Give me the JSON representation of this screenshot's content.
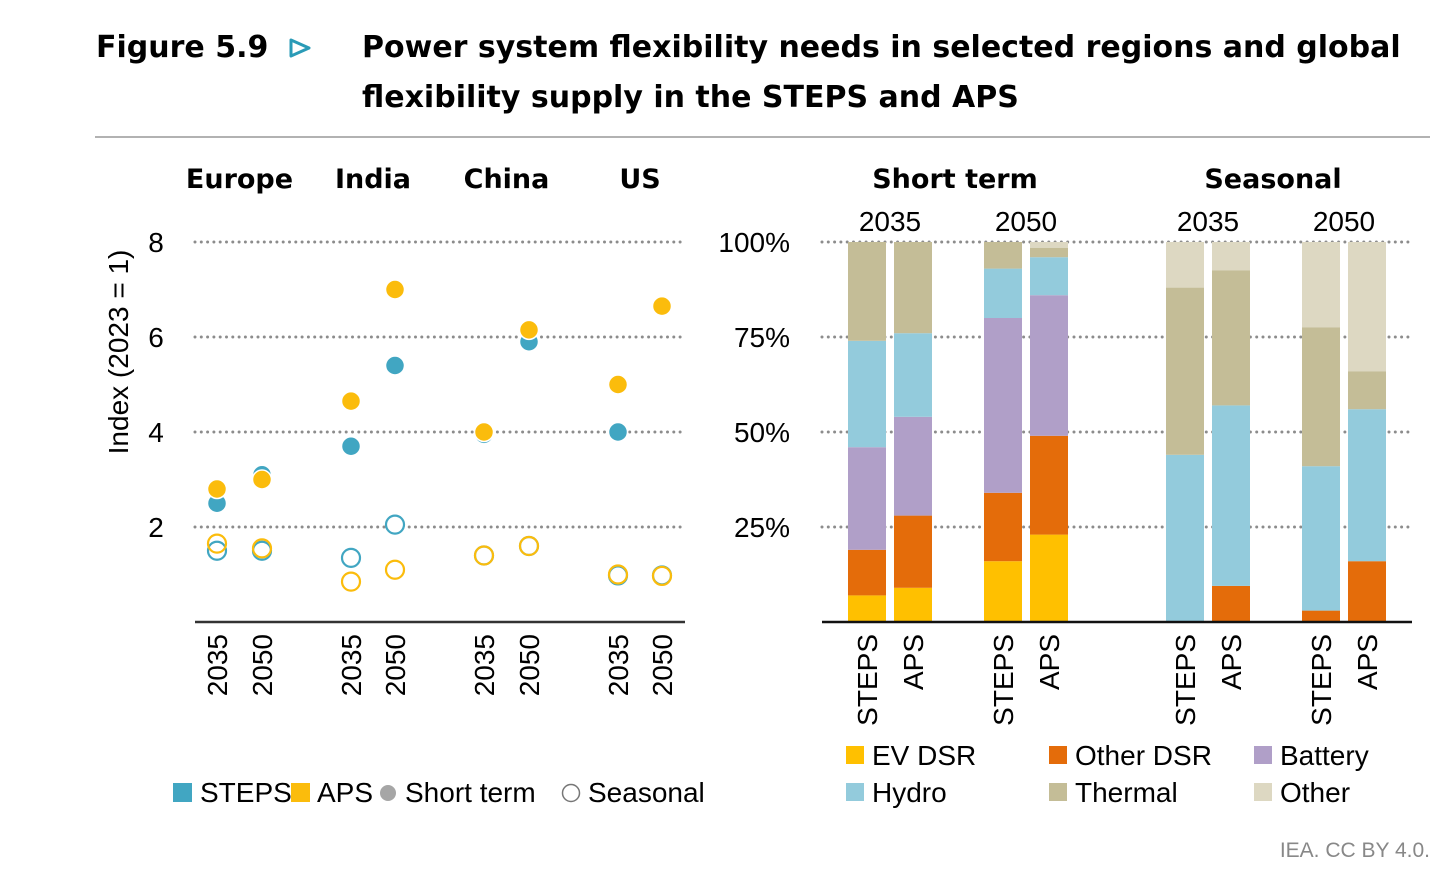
{
  "figure": {
    "label": "Figure 5.9",
    "arrow_icon": "triangle-right-icon",
    "title_line1": "Power system flexibility needs in selected regions and global",
    "title_line2": "flexibility supply in the STEPS and APS"
  },
  "colors": {
    "steps": "#41a6c2",
    "aps": "#fbbc0c",
    "ev_dsr": "#ffc000",
    "other_dsr": "#e46c0a",
    "battery": "#b09fc8",
    "hydro": "#93cbdc",
    "thermal": "#c4bd97",
    "other": "#ddd8c2",
    "grid": "#8c8c8c",
    "arrow": "#2a9bb7"
  },
  "chart_data": [
    {
      "type": "scatter",
      "ylabel": "Index (2023 = 1)",
      "ylim": [
        0,
        8
      ],
      "yticks": [
        "2",
        "4",
        "6",
        "8"
      ],
      "grid": true,
      "regions": [
        "Europe",
        "India",
        "China",
        "US"
      ],
      "years": [
        "2035",
        "2050"
      ],
      "points": [
        {
          "region": "Europe",
          "year": "2035",
          "steps_short": 2.5,
          "aps_short": 2.8,
          "steps_seasonal": 1.5,
          "aps_seasonal": 1.65
        },
        {
          "region": "Europe",
          "year": "2050",
          "steps_short": 3.1,
          "aps_short": 3.0,
          "steps_seasonal": 1.5,
          "aps_seasonal": 1.55
        },
        {
          "region": "India",
          "year": "2035",
          "steps_short": 3.7,
          "aps_short": 4.65,
          "steps_seasonal": 1.35,
          "aps_seasonal": 0.85
        },
        {
          "region": "India",
          "year": "2050",
          "steps_short": 5.4,
          "aps_short": 7.0,
          "steps_seasonal": 2.05,
          "aps_seasonal": 1.1
        },
        {
          "region": "China",
          "year": "2035",
          "steps_short": 3.95,
          "aps_short": 4.0,
          "steps_seasonal": 1.4,
          "aps_seasonal": 1.4
        },
        {
          "region": "China",
          "year": "2050",
          "steps_short": 5.9,
          "aps_short": 6.15,
          "steps_seasonal": 1.6,
          "aps_seasonal": 1.6
        },
        {
          "region": "US",
          "year": "2035",
          "steps_short": 4.0,
          "aps_short": 5.0,
          "steps_seasonal": 0.98,
          "aps_seasonal": 1.0
        },
        {
          "region": "US",
          "year": "2050",
          "steps_short": null,
          "aps_short": 6.65,
          "steps_seasonal": 0.98,
          "aps_seasonal": 0.97
        }
      ],
      "legend": [
        "STEPS",
        "APS",
        "Short term",
        "Seasonal"
      ],
      "legend_placement": "bottom"
    },
    {
      "type": "bar",
      "stacked": true,
      "ylim": [
        0,
        100
      ],
      "yticks": [
        "25%",
        "50%",
        "75%",
        "100%"
      ],
      "grid": true,
      "groups": [
        "Short term",
        "Seasonal"
      ],
      "series": [
        "EV DSR",
        "Other DSR",
        "Battery",
        "Hydro",
        "Thermal",
        "Other"
      ],
      "bars": [
        {
          "group": "Short term",
          "year": "2035",
          "scenario": "STEPS",
          "values": [
            7,
            12,
            27,
            28,
            26,
            0
          ]
        },
        {
          "group": "Short term",
          "year": "2035",
          "scenario": "APS",
          "values": [
            9,
            19,
            26,
            22,
            24,
            0
          ]
        },
        {
          "group": "Short term",
          "year": "2050",
          "scenario": "STEPS",
          "values": [
            16,
            18,
            46,
            13,
            7,
            0
          ]
        },
        {
          "group": "Short term",
          "year": "2050",
          "scenario": "APS",
          "values": [
            23,
            26,
            37,
            10,
            2.5,
            1.5
          ]
        },
        {
          "group": "Seasonal",
          "year": "2035",
          "scenario": "STEPS",
          "values": [
            0,
            0,
            0,
            44,
            44,
            12
          ]
        },
        {
          "group": "Seasonal",
          "year": "2035",
          "scenario": "APS",
          "values": [
            0,
            9.5,
            0,
            47.5,
            35.5,
            7.5
          ]
        },
        {
          "group": "Seasonal",
          "year": "2050",
          "scenario": "STEPS",
          "values": [
            0,
            3,
            0,
            38,
            36.5,
            22.5
          ]
        },
        {
          "group": "Seasonal",
          "year": "2050",
          "scenario": "APS",
          "values": [
            0,
            16,
            0,
            40,
            10,
            34
          ]
        }
      ],
      "legend_placement": "bottom"
    }
  ],
  "footer": "IEA. CC BY 4.0."
}
